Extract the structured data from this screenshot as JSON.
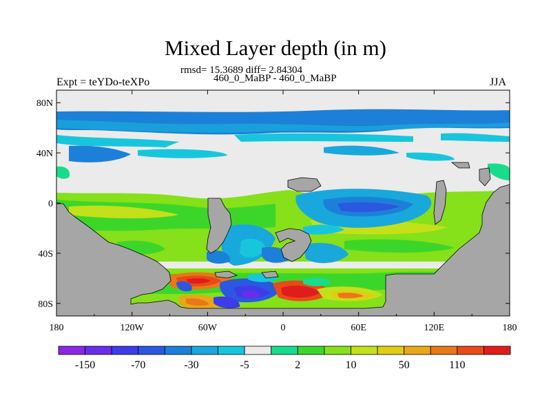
{
  "title": "Mixed Layer depth (in m)",
  "stats": "rmsd= 15.3689 diff= 2.84304",
  "subtitle": "460_0_MaBP - 460_0_MaBP",
  "left_label": "Expt = teYDo-teXPo",
  "right_label": "JJA",
  "map": {
    "lon_range": [
      -180,
      180
    ],
    "lat_range": [
      -90,
      90
    ],
    "land_color": "#a6a6a6",
    "x_ticks": [
      {
        "value": -180,
        "label": "180"
      },
      {
        "value": -120,
        "label": "120W"
      },
      {
        "value": -60,
        "label": "60W"
      },
      {
        "value": 0,
        "label": "0"
      },
      {
        "value": 60,
        "label": "60E"
      },
      {
        "value": 120,
        "label": "120E"
      },
      {
        "value": 180,
        "label": "180"
      }
    ],
    "y_ticks": [
      {
        "value": 80,
        "label": "80N"
      },
      {
        "value": 40,
        "label": "40N"
      },
      {
        "value": 0,
        "label": "0"
      },
      {
        "value": -40,
        "label": "40S"
      },
      {
        "value": -80,
        "label": "80S"
      }
    ]
  },
  "colorbar": {
    "colors": [
      "#8c26e6",
      "#6a2ee8",
      "#3d3ce8",
      "#2a58e0",
      "#1c80d8",
      "#19a8dc",
      "#17c6dc",
      "#ebebeb",
      "#18dc8c",
      "#3cd62a",
      "#86e01a",
      "#c4e01a",
      "#e0cc14",
      "#e6a818",
      "#e87818",
      "#e84a18",
      "#e01c1c"
    ],
    "labels": [
      {
        "boundary": 1,
        "text": "-150"
      },
      {
        "boundary": 3,
        "text": "-70"
      },
      {
        "boundary": 5,
        "text": "-30"
      },
      {
        "boundary": 7,
        "text": "-5"
      },
      {
        "boundary": 9,
        "text": "2"
      },
      {
        "boundary": 11,
        "text": "10"
      },
      {
        "boundary": 13,
        "text": "50"
      },
      {
        "boundary": 15,
        "text": "110"
      }
    ]
  }
}
